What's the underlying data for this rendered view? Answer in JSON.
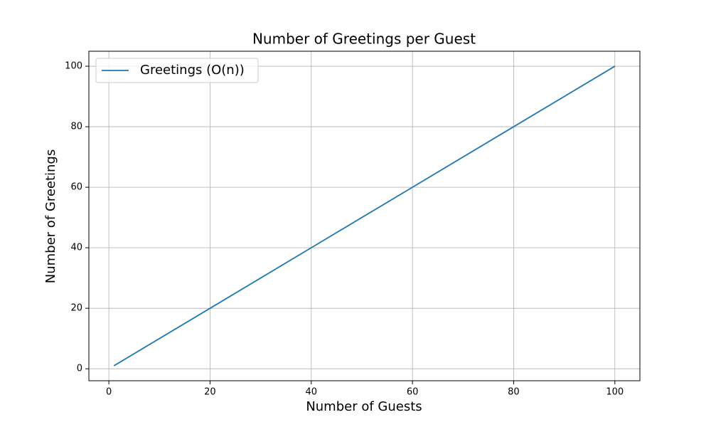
{
  "chart_data": {
    "type": "line",
    "title": "Number of Greetings per Guest",
    "xlabel": "Number of Guests",
    "ylabel": "Number of Greetings",
    "x": [
      1,
      20,
      40,
      60,
      80,
      100
    ],
    "series": [
      {
        "name": "Greetings (O(n))",
        "color": "#1f77b4",
        "values": [
          1,
          20,
          40,
          60,
          80,
          100
        ]
      }
    ],
    "xlim": [
      -3.95,
      104.95
    ],
    "ylim": [
      -3.95,
      104.95
    ],
    "xticks": [
      0,
      20,
      40,
      60,
      80,
      100
    ],
    "yticks": [
      0,
      20,
      40,
      60,
      80,
      100
    ],
    "grid": true,
    "legend": "upper left"
  }
}
